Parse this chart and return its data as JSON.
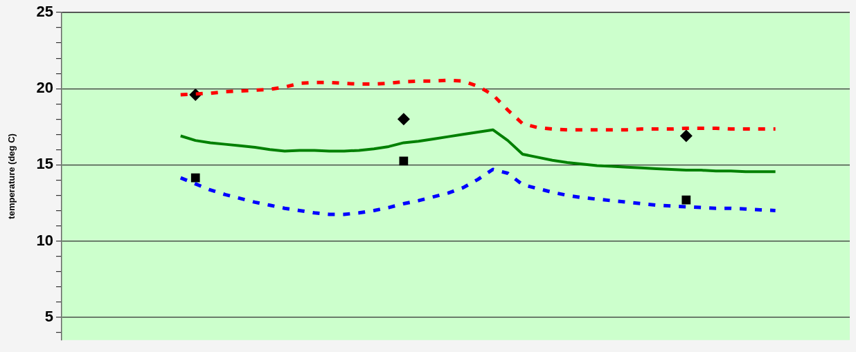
{
  "chart_data": {
    "type": "line",
    "ylabel": "temperature (deg C)",
    "categories": [
      null,
      null,
      null,
      null,
      null,
      null,
      null,
      null,
      null,
      null,
      null,
      null,
      null,
      null,
      null,
      null,
      null,
      null,
      null,
      null,
      null,
      null,
      null,
      null,
      null,
      null,
      null,
      null,
      null,
      null,
      null,
      null,
      null,
      null,
      null,
      null,
      null,
      null,
      null,
      null,
      null,
      null,
      null,
      null,
      null,
      null,
      null,
      null,
      null,
      null,
      null,
      null,
      null,
      null
    ],
    "series": [
      {
        "color": "#ff0000",
        "line_style": "dashed",
        "marker": "none",
        "values": [
          null,
          null,
          null,
          null,
          null,
          null,
          null,
          null,
          19.6,
          19.65,
          19.7,
          19.8,
          19.85,
          19.9,
          19.95,
          20.1,
          20.35,
          20.4,
          20.4,
          20.35,
          20.3,
          20.3,
          20.35,
          20.45,
          20.5,
          20.5,
          20.55,
          20.5,
          20.15,
          19.6,
          18.6,
          17.7,
          17.45,
          17.35,
          17.3,
          17.3,
          17.3,
          17.3,
          17.3,
          17.35,
          17.35,
          17.35,
          17.4,
          17.4,
          17.4,
          17.35,
          17.35,
          17.35,
          17.35,
          null,
          null,
          null,
          null,
          null
        ]
      },
      {
        "color": "#008000",
        "line_style": "solid",
        "marker": "none",
        "values": [
          null,
          null,
          null,
          null,
          null,
          null,
          null,
          null,
          16.9,
          16.6,
          16.45,
          16.35,
          16.25,
          16.15,
          16.0,
          15.9,
          15.95,
          15.95,
          15.9,
          15.9,
          15.95,
          16.05,
          16.2,
          16.45,
          16.55,
          16.7,
          16.85,
          17.0,
          17.15,
          17.3,
          16.6,
          15.7,
          15.5,
          15.3,
          15.15,
          15.05,
          14.95,
          14.9,
          14.85,
          14.8,
          14.75,
          14.7,
          14.65,
          14.65,
          14.6,
          14.6,
          14.55,
          14.55,
          14.55,
          null,
          null,
          null,
          null,
          null
        ]
      },
      {
        "color": "#0000ff",
        "line_style": "dashed",
        "marker": "none",
        "values": [
          null,
          null,
          null,
          null,
          null,
          null,
          null,
          null,
          14.15,
          13.75,
          13.35,
          13.05,
          12.8,
          12.55,
          12.35,
          12.15,
          12.0,
          11.85,
          11.75,
          11.75,
          11.85,
          12.0,
          12.2,
          12.45,
          12.65,
          12.9,
          13.15,
          13.5,
          14.05,
          14.7,
          14.45,
          13.7,
          13.45,
          13.2,
          13.0,
          12.85,
          12.75,
          12.65,
          12.55,
          12.45,
          12.35,
          12.3,
          12.25,
          12.2,
          12.15,
          12.15,
          12.1,
          12.05,
          12.0,
          null,
          null,
          null,
          null,
          null
        ]
      },
      {
        "type": "scatter",
        "color": "#000000",
        "marker": "diamond",
        "values": [
          null,
          null,
          null,
          null,
          null,
          null,
          null,
          null,
          null,
          19.6,
          null,
          null,
          null,
          null,
          null,
          null,
          null,
          null,
          null,
          null,
          null,
          null,
          null,
          18.0,
          null,
          null,
          null,
          null,
          null,
          null,
          null,
          null,
          null,
          null,
          null,
          null,
          null,
          null,
          null,
          null,
          null,
          null,
          16.9,
          null,
          null,
          null,
          null,
          null,
          null,
          null,
          null,
          null,
          null,
          null
        ]
      },
      {
        "type": "scatter",
        "color": "#000000",
        "marker": "square",
        "values": [
          null,
          null,
          null,
          null,
          null,
          null,
          null,
          null,
          null,
          14.15,
          null,
          null,
          null,
          null,
          null,
          null,
          null,
          null,
          null,
          null,
          null,
          null,
          null,
          15.25,
          null,
          null,
          null,
          null,
          null,
          null,
          null,
          null,
          null,
          null,
          null,
          null,
          null,
          null,
          null,
          null,
          null,
          null,
          12.7,
          null,
          null,
          null,
          null,
          null,
          null,
          null,
          null,
          null,
          null,
          null
        ]
      }
    ],
    "ylim": [
      3.5,
      25
    ],
    "yticks": [
      {
        "value": 4,
        "label": null
      },
      5,
      {
        "value": 6,
        "label": null
      },
      {
        "value": 7,
        "label": null
      },
      {
        "value": 8,
        "label": null
      },
      {
        "value": 9,
        "label": null
      },
      10,
      {
        "value": 11,
        "label": null
      },
      {
        "value": 12,
        "label": null
      },
      {
        "value": 13,
        "label": null
      },
      {
        "value": 14,
        "label": null
      },
      15,
      {
        "value": 16,
        "label": null
      },
      {
        "value": 17,
        "label": null
      },
      {
        "value": 18,
        "label": null
      },
      {
        "value": 19,
        "label": null
      },
      20,
      {
        "value": 21,
        "label": null
      },
      {
        "value": 22,
        "label": null
      },
      {
        "value": 23,
        "label": null
      },
      {
        "value": 24,
        "label": null
      },
      25
    ],
    "grid": "y",
    "tick_labels": "y"
  }
}
